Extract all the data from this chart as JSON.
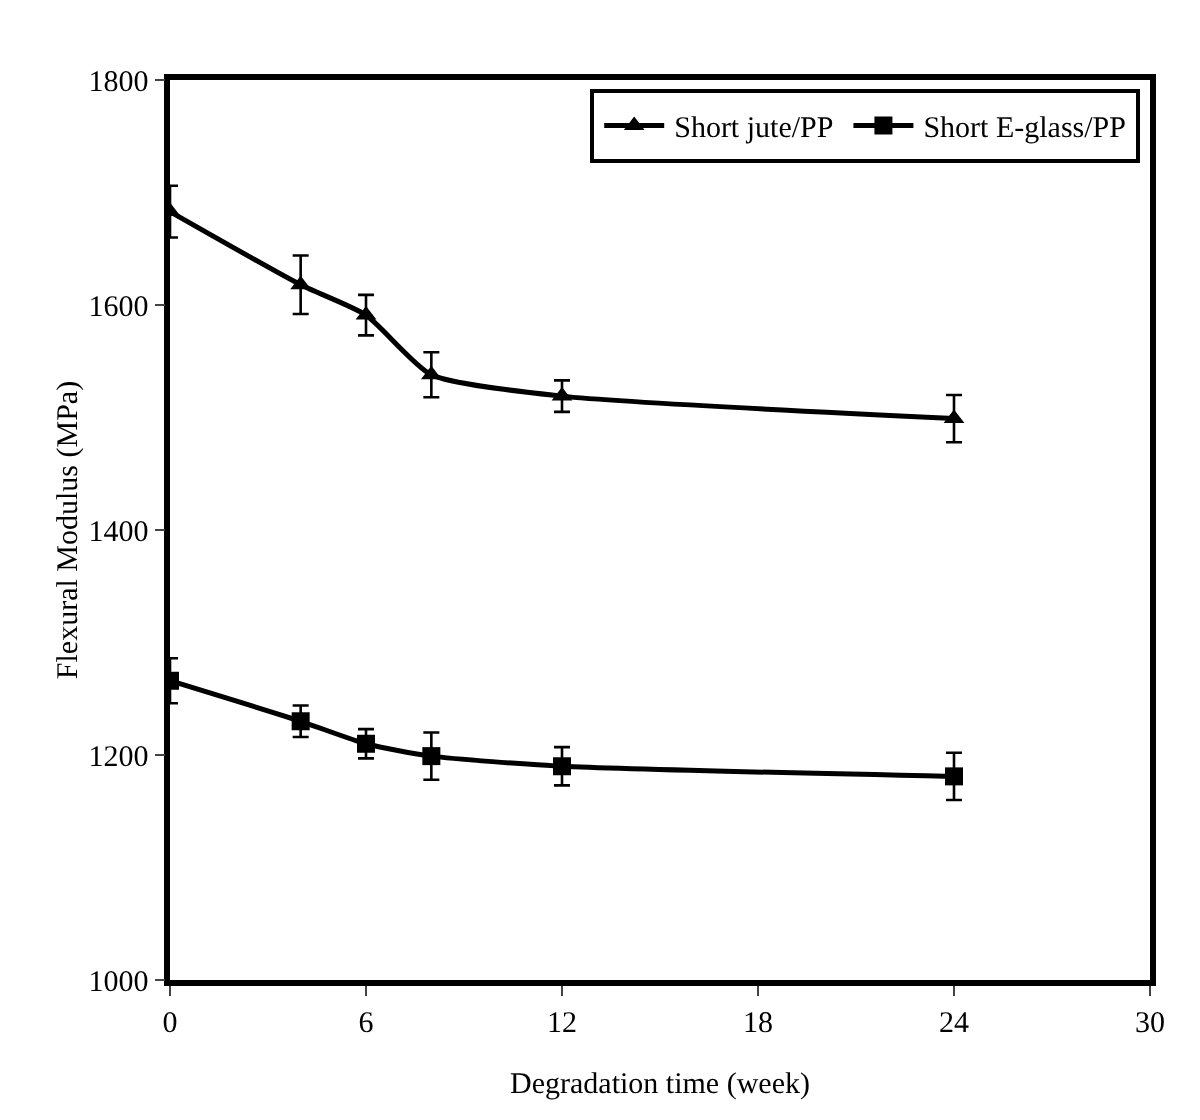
{
  "chart_data": {
    "type": "line",
    "xlabel": "Degradation time (week)",
    "ylabel": "Flexural Modulus (MPa)",
    "x": [
      0,
      4,
      6,
      8,
      12,
      24
    ],
    "series": [
      {
        "name": "Short jute/PP",
        "color": "#000000",
        "marker": "triangle",
        "values": [
          1683,
          1618,
          1591,
          1538,
          1519,
          1499
        ],
        "errors": [
          23,
          26,
          18,
          20,
          14,
          21
        ]
      },
      {
        "name": "Short E-glass/PP",
        "color": "#000000",
        "marker": "square",
        "values": [
          1266,
          1230,
          1210,
          1199,
          1190,
          1181
        ],
        "errors": [
          20,
          14,
          13,
          21,
          17,
          21
        ]
      }
    ],
    "xlim": [
      0,
      30
    ],
    "xticks": [
      0,
      6,
      12,
      18,
      24,
      30
    ],
    "ylim": [
      1000,
      1800
    ],
    "yticks": [
      1000,
      1200,
      1400,
      1600,
      1800
    ],
    "grid": false,
    "legend": "top right",
    "line_style": "solid"
  }
}
